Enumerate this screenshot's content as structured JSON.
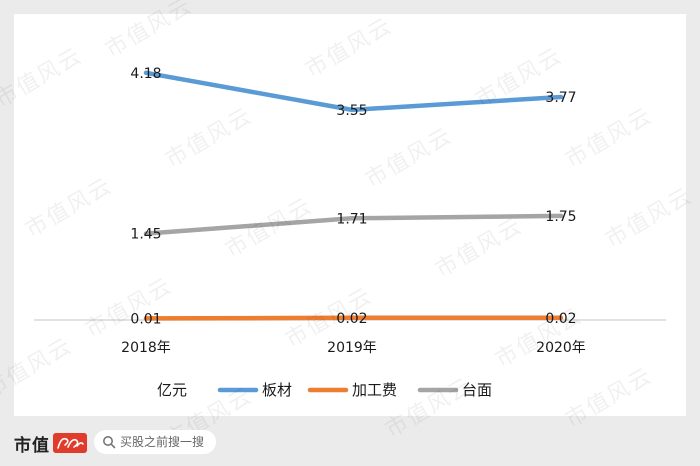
{
  "chart_data": {
    "type": "line",
    "categories": [
      "2018年",
      "2019年",
      "2020年"
    ],
    "series": [
      {
        "name": "板材",
        "values": [
          4.18,
          3.55,
          3.77
        ],
        "labels": [
          "4.18",
          "3.55",
          "3.77"
        ],
        "color": "#5b9bd5"
      },
      {
        "name": "加工费",
        "values": [
          0.01,
          0.02,
          0.02
        ],
        "labels": [
          "0.01",
          "0.02",
          "0.02"
        ],
        "color": "#ed7d31"
      },
      {
        "name": "台面",
        "values": [
          1.45,
          1.71,
          1.75
        ],
        "labels": [
          "1.45",
          "1.71",
          "1.75"
        ],
        "color": "#a5a5a5"
      }
    ],
    "unit_label": "亿元",
    "ylim": [
      0,
      4.5
    ],
    "grid": false,
    "legend_position": "bottom"
  },
  "watermark": "市值风云",
  "footer": {
    "brand": "市值",
    "logo_icon": "fengyun-logo-icon",
    "search_icon": "search-icon",
    "search_placeholder": "买股之前搜一搜"
  }
}
